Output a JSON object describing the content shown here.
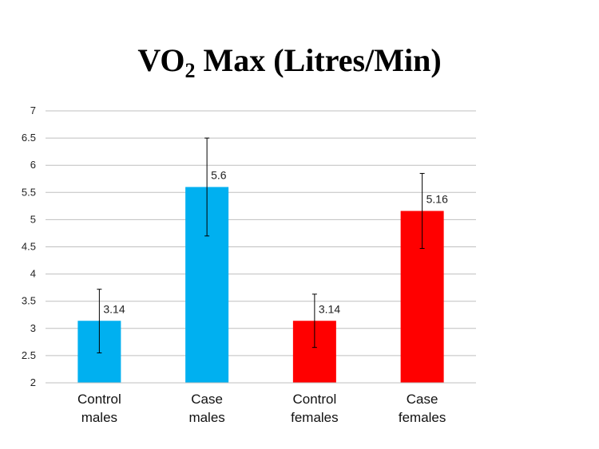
{
  "title": {
    "prefix": "VO",
    "subscript": "2",
    "suffix": " Max (Litres/Min)"
  },
  "chart_data": {
    "type": "bar",
    "title": "VO2 Max (Litres/Min)",
    "categories": [
      [
        "Control",
        "males"
      ],
      [
        "Case",
        "males"
      ],
      [
        "Control",
        "females"
      ],
      [
        "Case",
        "females"
      ]
    ],
    "values": [
      3.14,
      5.6,
      3.14,
      5.16
    ],
    "data_labels": [
      "3.14",
      "5.6",
      "3.14",
      "5.16"
    ],
    "error_low": [
      2.55,
      4.7,
      2.65,
      4.47
    ],
    "error_high": [
      3.72,
      6.5,
      3.63,
      5.85
    ],
    "colors": [
      "#00B0F0",
      "#00B0F0",
      "#FF0000",
      "#FF0000"
    ],
    "ylim": [
      2,
      7
    ],
    "yticks": [
      2,
      2.5,
      3,
      3.5,
      4,
      4.5,
      5,
      5.5,
      6,
      6.5,
      7
    ],
    "ytick_labels": [
      "2",
      "2.5",
      "3",
      "3.5",
      "4",
      "4.5",
      "5",
      "5.5",
      "6",
      "6.5",
      "7"
    ],
    "gridlines": true,
    "xlabel": "",
    "ylabel": ""
  }
}
